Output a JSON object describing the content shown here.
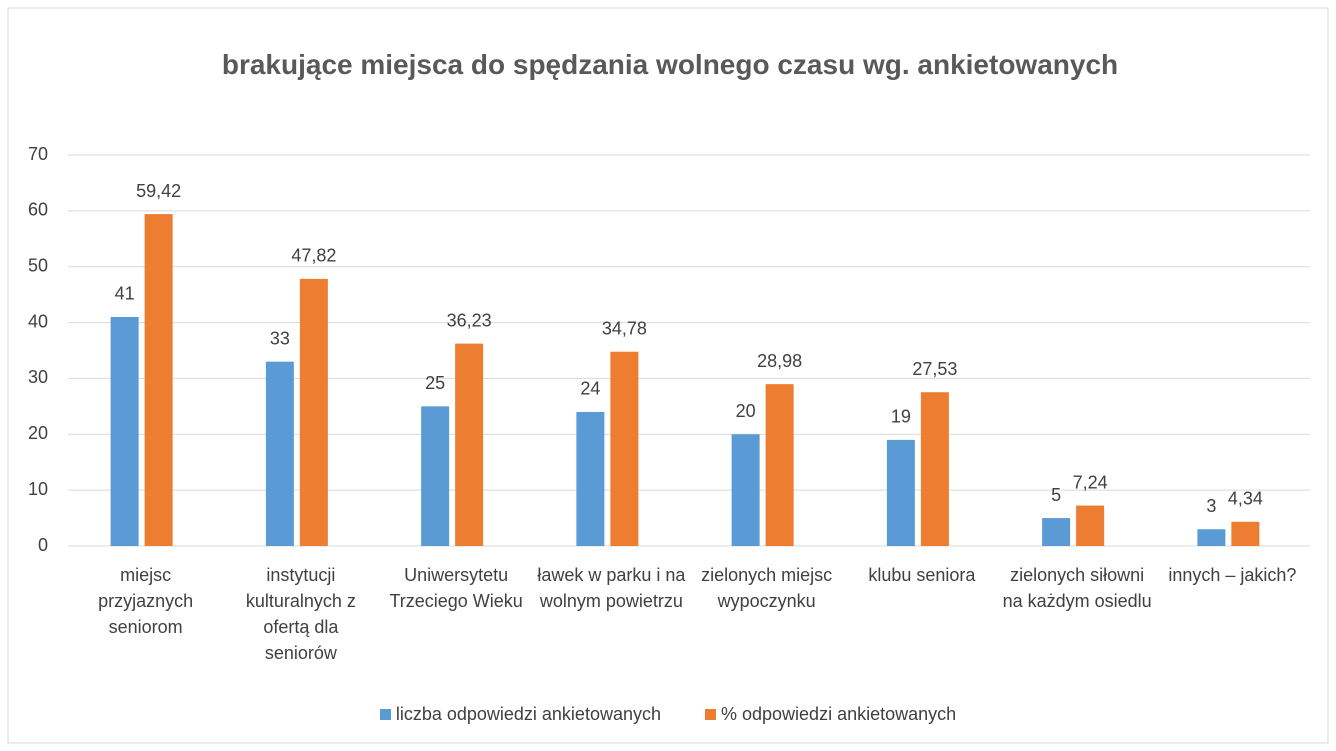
{
  "chart_data": {
    "type": "bar",
    "title": "brakujące miejsca do spędzania wolnego czasu wg. ankietowanych",
    "categories": [
      "miejsc przyjaznych seniorom",
      "instytucji kulturalnych z ofertą dla seniorów",
      "Uniwersytetu Trzeciego Wieku",
      "ławek w parku i na wolnym powietrzu",
      "zielonych miejsc wypoczynku",
      "klubu seniora",
      "zielonych siłowni na każdym osiedlu",
      "innych – jakich?"
    ],
    "series": [
      {
        "name": "liczba odpowiedzi ankietowanych",
        "color": "#5b9bd5",
        "values": [
          41,
          33,
          25,
          24,
          20,
          19,
          5,
          3
        ]
      },
      {
        "name": "% odpowiedzi ankietowanych",
        "color": "#ed7d31",
        "values": [
          59.42,
          47.82,
          36.23,
          34.78,
          28.98,
          27.53,
          7.24,
          4.34
        ],
        "value_labels": [
          "59,42",
          "47,82",
          "36,23",
          "34,78",
          "28,98",
          "27,53",
          "7,24",
          "4,34"
        ]
      }
    ],
    "ylim": [
      0,
      70
    ],
    "yticks": [
      0,
      10,
      20,
      30,
      40,
      50,
      60,
      70
    ],
    "grid": true,
    "legend": "bottom"
  }
}
